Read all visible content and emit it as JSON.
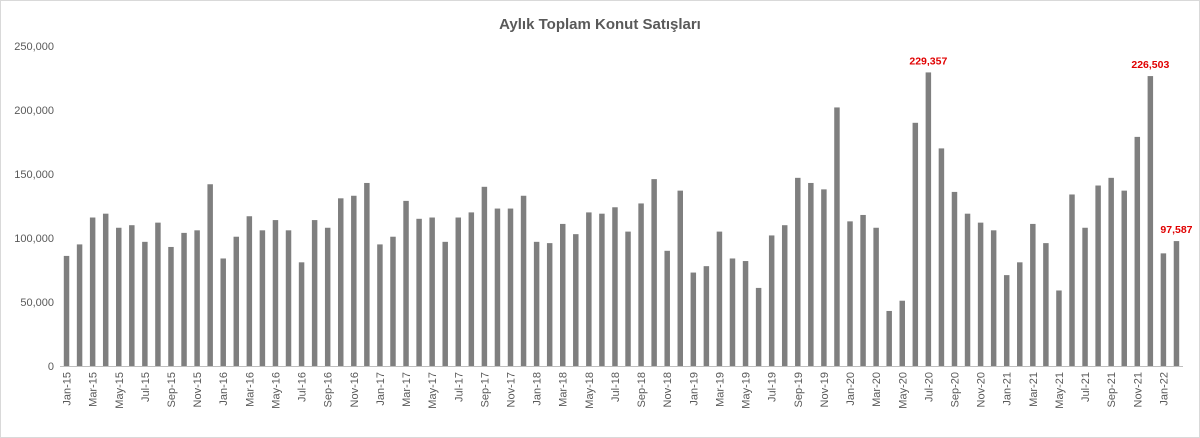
{
  "chart_data": {
    "type": "bar",
    "title": "Aylık Toplam Konut Satışları",
    "xlabel": "",
    "ylabel": "",
    "ylim": [
      0,
      250000
    ],
    "yticks": [
      0,
      50000,
      100000,
      150000,
      200000,
      250000
    ],
    "ytick_labels": [
      "0",
      "50,000",
      "100,000",
      "150,000",
      "200,000",
      "250,000"
    ],
    "grid": false,
    "legend": "none",
    "bar_color": "#7f7f7f",
    "label_color": "#e00000",
    "categories": [
      "Jan-15",
      "Feb-15",
      "Mar-15",
      "Apr-15",
      "May-15",
      "Jun-15",
      "Jul-15",
      "Aug-15",
      "Sep-15",
      "Oct-15",
      "Nov-15",
      "Dec-15",
      "Jan-16",
      "Feb-16",
      "Mar-16",
      "Apr-16",
      "May-16",
      "Jun-16",
      "Jul-16",
      "Aug-16",
      "Sep-16",
      "Oct-16",
      "Nov-16",
      "Dec-16",
      "Jan-17",
      "Feb-17",
      "Mar-17",
      "Apr-17",
      "May-17",
      "Jun-17",
      "Jul-17",
      "Aug-17",
      "Sep-17",
      "Oct-17",
      "Nov-17",
      "Dec-17",
      "Jan-18",
      "Feb-18",
      "Mar-18",
      "Apr-18",
      "May-18",
      "Jun-18",
      "Jul-18",
      "Aug-18",
      "Sep-18",
      "Oct-18",
      "Nov-18",
      "Dec-18",
      "Jan-19",
      "Feb-19",
      "Mar-19",
      "Apr-19",
      "May-19",
      "Jun-19",
      "Jul-19",
      "Aug-19",
      "Sep-19",
      "Oct-19",
      "Nov-19",
      "Dec-19",
      "Jan-20",
      "Feb-20",
      "Mar-20",
      "Apr-20",
      "May-20",
      "Jun-20",
      "Jul-20",
      "Aug-20",
      "Sep-20",
      "Oct-20",
      "Nov-20",
      "Dec-20",
      "Jan-21",
      "Feb-21",
      "Mar-21",
      "Apr-21",
      "May-21",
      "Jun-21",
      "Jul-21",
      "Aug-21",
      "Sep-21",
      "Oct-21",
      "Nov-21",
      "Dec-21",
      "Jan-22",
      "Feb-22"
    ],
    "shown_tick_labels": [
      "Jan-15",
      "Mar-15",
      "May-15",
      "Jul-15",
      "Sep-15",
      "Nov-15",
      "Jan-16",
      "Mar-16",
      "May-16",
      "Jul-16",
      "Sep-16",
      "Nov-16",
      "Jan-17",
      "Mar-17",
      "May-17",
      "Jul-17",
      "Sep-17",
      "Nov-17",
      "Jan-18",
      "Mar-18",
      "May-18",
      "Jul-18",
      "Sep-18",
      "Nov-18",
      "Jan-19",
      "Mar-19",
      "May-19",
      "Jul-19",
      "Sep-19",
      "Nov-19",
      "Jan-20",
      "Mar-20",
      "May-20",
      "Jul-20",
      "Sep-20",
      "Nov-20",
      "Jan-21",
      "Mar-21",
      "May-21",
      "Jul-21",
      "Sep-21",
      "Nov-21",
      "Jan-22"
    ],
    "values": [
      86000,
      95000,
      116000,
      119000,
      108000,
      110000,
      97000,
      112000,
      93000,
      104000,
      106000,
      142000,
      84000,
      101000,
      117000,
      106000,
      114000,
      106000,
      81000,
      114000,
      108000,
      131000,
      133000,
      143000,
      95000,
      101000,
      129000,
      115000,
      116000,
      97000,
      116000,
      120000,
      140000,
      123000,
      123000,
      133000,
      97000,
      96000,
      111000,
      103000,
      120000,
      119000,
      124000,
      105000,
      127000,
      146000,
      90000,
      137000,
      73000,
      78000,
      105000,
      84000,
      82000,
      61000,
      102000,
      110000,
      147000,
      143000,
      138000,
      202000,
      113000,
      118000,
      108000,
      43000,
      51000,
      190000,
      229357,
      170000,
      136000,
      119000,
      112000,
      106000,
      71000,
      81000,
      111000,
      96000,
      59000,
      134000,
      108000,
      141000,
      147000,
      137000,
      179000,
      226503,
      88000,
      97587
    ],
    "data_labels": [
      {
        "category": "Jul-20",
        "text": "229,357"
      },
      {
        "category": "Dec-21",
        "text": "226,503"
      },
      {
        "category": "Feb-22",
        "text": "97,587"
      }
    ]
  }
}
